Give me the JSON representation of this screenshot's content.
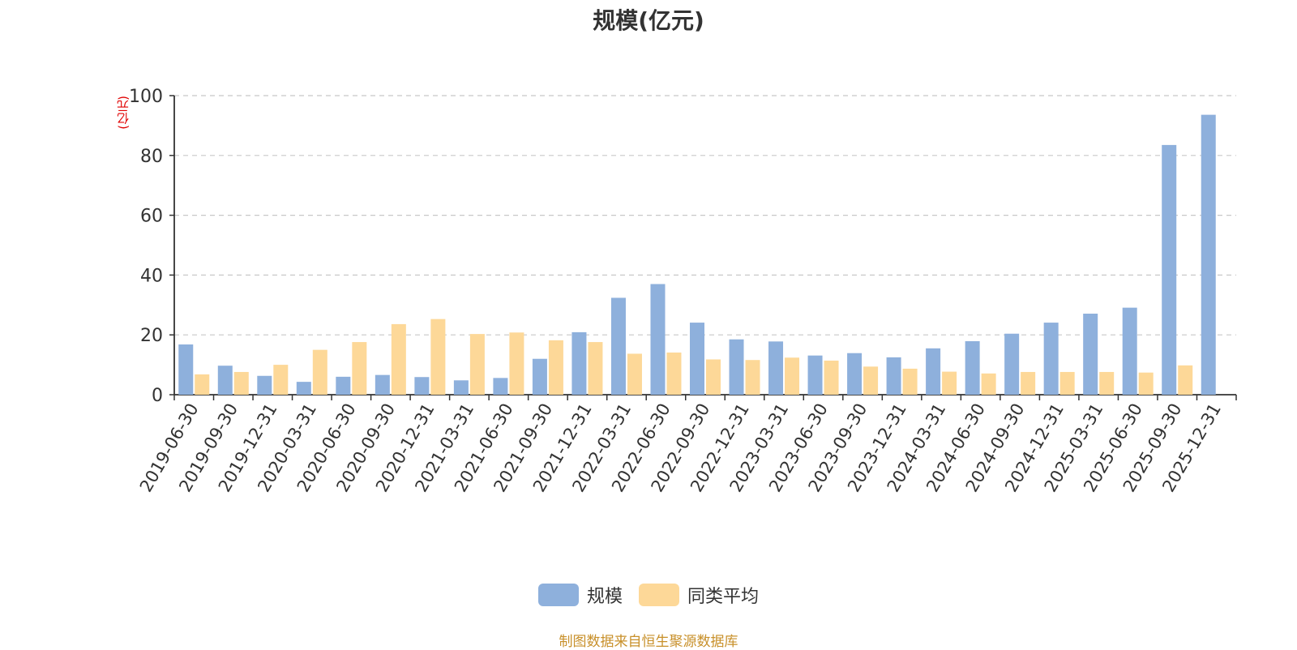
{
  "chart_data": {
    "type": "bar",
    "title": "规模(亿元)",
    "ylabel": "(亿元)",
    "xlabel": "",
    "ylim": [
      0,
      100
    ],
    "yticks": [
      0,
      20,
      40,
      60,
      80,
      100
    ],
    "grid": true,
    "legend_position": "bottom",
    "categories": [
      "2019-06-30",
      "2019-09-30",
      "2019-12-31",
      "2020-03-31",
      "2020-06-30",
      "2020-09-30",
      "2020-12-31",
      "2021-03-31",
      "2021-06-30",
      "2021-09-30",
      "2021-12-31",
      "2022-03-31",
      "2022-06-30",
      "2022-09-30",
      "2022-12-31",
      "2023-03-31",
      "2023-06-30",
      "2023-09-30",
      "2023-12-31",
      "2024-03-31",
      "2024-06-30",
      "2024-09-30",
      "2024-12-31",
      "2025-03-31",
      "2025-06-30",
      "2025-09-30",
      "2025-12-31"
    ],
    "series": [
      {
        "name": "规模",
        "color": "#8eb0dc",
        "values": [
          16.8,
          9.7,
          6.3,
          4.3,
          6.0,
          6.6,
          5.9,
          4.8,
          5.6,
          12.0,
          20.9,
          32.4,
          37.0,
          24.1,
          18.5,
          17.8,
          13.1,
          13.9,
          12.5,
          15.5,
          17.9,
          20.4,
          24.1,
          27.1,
          29.1,
          83.5,
          93.6
        ]
      },
      {
        "name": "同类平均",
        "color": "#fdd898",
        "values": [
          6.8,
          7.6,
          10.0,
          15.0,
          17.6,
          23.6,
          25.3,
          20.3,
          20.8,
          18.2,
          17.6,
          13.7,
          14.1,
          11.8,
          11.6,
          12.4,
          11.4,
          9.4,
          8.7,
          7.7,
          7.1,
          7.6,
          7.6,
          7.6,
          7.4,
          9.8,
          null
        ]
      }
    ]
  },
  "legend": {
    "items": [
      {
        "label": "规模",
        "color": "#8eb0dc"
      },
      {
        "label": "同类平均",
        "color": "#fdd898"
      }
    ]
  },
  "source_note": "制图数据来自恒生聚源数据库"
}
